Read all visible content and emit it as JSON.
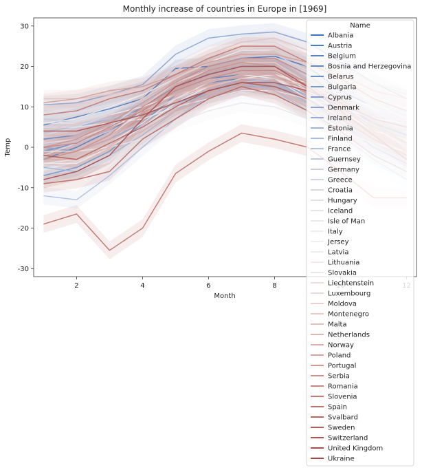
{
  "chart_data": {
    "type": "line",
    "title": "Monthly increase of countries in Europe in [1969]",
    "xlabel": "Month",
    "ylabel": "Temp",
    "xlim": [
      0.7,
      12.3
    ],
    "ylim": [
      -32,
      32
    ],
    "x_ticks": [
      2,
      4,
      6,
      8,
      10,
      12
    ],
    "y_ticks": [
      -30,
      -20,
      -10,
      0,
      10,
      20,
      30
    ],
    "legend_title": "Name",
    "legend_position": "upper right",
    "confidence_band": true,
    "x": [
      1,
      2,
      3,
      4,
      5,
      6,
      7,
      8,
      9,
      10,
      11,
      12
    ],
    "series": [
      {
        "name": "Albania",
        "color": "#3b73c0",
        "values": [
          5.5,
          7.5,
          9.5,
          12,
          19.5,
          20,
          22,
          22.5,
          20,
          14,
          10,
          7
        ]
      },
      {
        "name": "Austria",
        "color": "#4a7cc0",
        "values": [
          -3,
          0,
          4,
          9,
          14,
          17,
          18,
          17,
          14,
          8,
          3,
          -1
        ]
      },
      {
        "name": "Belgium",
        "color": "#5584c4",
        "values": [
          2,
          3,
          6,
          9,
          13,
          16,
          17,
          17,
          14,
          10,
          6,
          3
        ]
      },
      {
        "name": "Bosnia and Herzegovina",
        "color": "#5f8bc6",
        "values": [
          -1,
          1,
          5,
          10,
          15,
          18,
          20,
          20,
          16,
          11,
          6,
          1
        ]
      },
      {
        "name": "Belarus",
        "color": "#6a92c8",
        "values": [
          -7,
          -5,
          -1,
          6,
          13,
          16,
          18,
          17,
          12,
          6,
          0,
          -4
        ]
      },
      {
        "name": "Bulgaria",
        "color": "#7499cb",
        "values": [
          -1,
          1,
          5,
          11,
          16,
          20,
          22,
          22,
          18,
          12,
          6,
          1
        ]
      },
      {
        "name": "Cyprus",
        "color": "#7f9fce",
        "values": [
          10.5,
          11,
          13,
          15.5,
          23,
          27,
          28,
          28.5,
          26,
          21,
          16,
          12
        ]
      },
      {
        "name": "Denmark",
        "color": "#89a6d1",
        "values": [
          0,
          -1,
          2,
          6,
          11,
          14,
          16,
          16,
          13,
          9,
          5,
          2
        ]
      },
      {
        "name": "Ireland",
        "color": "#94add4",
        "values": [
          5,
          5,
          7,
          8,
          11,
          13,
          15,
          15,
          13,
          10,
          7,
          6
        ]
      },
      {
        "name": "Estonia",
        "color": "#9fb4d7",
        "values": [
          -5,
          -6,
          -2,
          3,
          9,
          14,
          17,
          16,
          11,
          6,
          1,
          -3
        ]
      },
      {
        "name": "Finland",
        "color": "#aabbda",
        "values": [
          -12,
          -13,
          -7,
          0,
          7,
          13,
          16,
          14,
          9,
          3,
          -3,
          -8
        ]
      },
      {
        "name": "France",
        "color": "#b4c2dd",
        "values": [
          4,
          5,
          8,
          11,
          15,
          18,
          20,
          20,
          17,
          13,
          8,
          5
        ]
      },
      {
        "name": "Guernsey",
        "color": "#bfc9e0",
        "values": [
          7,
          6,
          7,
          9,
          12,
          14,
          16,
          17,
          15,
          13,
          10,
          8
        ]
      },
      {
        "name": "Germany",
        "color": "#c9d0e3",
        "values": [
          0,
          1,
          4,
          8,
          13,
          16,
          18,
          17,
          14,
          9,
          5,
          1
        ]
      },
      {
        "name": "Greece",
        "color": "#d1d6e5",
        "values": [
          8,
          9,
          11,
          14,
          19,
          23,
          26,
          26,
          22,
          17,
          13,
          10
        ]
      },
      {
        "name": "Croatia",
        "color": "#d8dbe7",
        "values": [
          3,
          5,
          8,
          12,
          17,
          21,
          23,
          23,
          19,
          14,
          9,
          5
        ]
      },
      {
        "name": "Hungary",
        "color": "#dfe0ea",
        "values": [
          -2,
          1,
          5,
          11,
          16,
          19,
          21,
          20,
          16,
          11,
          5,
          0
        ]
      },
      {
        "name": "Iceland",
        "color": "#e5e6ed",
        "values": [
          -1,
          -1,
          0,
          2,
          6,
          9,
          11,
          10,
          7,
          4,
          1,
          -1
        ]
      },
      {
        "name": "Isle of Man",
        "color": "#eaeaef",
        "values": [
          5,
          5,
          6,
          7,
          10,
          12,
          14,
          14,
          12,
          10,
          7,
          6
        ]
      },
      {
        "name": "Italy",
        "color": "#eeeef1",
        "values": [
          6,
          7,
          10,
          13,
          17,
          21,
          24,
          24,
          20,
          16,
          11,
          7
        ]
      },
      {
        "name": "Jersey",
        "color": "#f0eff1",
        "values": [
          6,
          6,
          8,
          10,
          13,
          15,
          17,
          18,
          16,
          13,
          10,
          7
        ]
      },
      {
        "name": "Latvia",
        "color": "#f1eeee",
        "values": [
          -4,
          -4,
          0,
          5,
          11,
          15,
          17,
          17,
          12,
          7,
          2,
          -2
        ]
      },
      {
        "name": "Lithuania",
        "color": "#f1ebeb",
        "values": [
          -4,
          -3,
          1,
          6,
          12,
          16,
          18,
          17,
          13,
          7,
          2,
          -2
        ]
      },
      {
        "name": "Slovakia",
        "color": "#f0e6e5",
        "values": [
          -3,
          -1,
          3,
          9,
          14,
          17,
          19,
          19,
          14,
          9,
          4,
          -1
        ]
      },
      {
        "name": "Liechtenstein",
        "color": "#efe0de",
        "values": [
          0,
          1,
          5,
          9,
          13,
          16,
          18,
          18,
          15,
          10,
          5,
          1
        ]
      },
      {
        "name": "Luxembourg",
        "color": "#edd9d6",
        "values": [
          1,
          2,
          5,
          8,
          12,
          15,
          17,
          17,
          14,
          9,
          4,
          2
        ]
      },
      {
        "name": "Moldova",
        "color": "#ead1ce",
        "values": [
          -3,
          -1,
          3,
          10,
          16,
          19,
          21,
          21,
          16,
          10,
          5,
          0
        ]
      },
      {
        "name": "Montenegro",
        "color": "#e7c9c5",
        "values": [
          4,
          6,
          8,
          12,
          17,
          21,
          23,
          24,
          20,
          15,
          10,
          6
        ]
      },
      {
        "name": "Malta",
        "color": "#e3c0bc",
        "values": [
          12,
          12,
          13,
          15,
          19,
          23,
          26,
          27,
          24,
          20,
          16,
          13
        ]
      },
      {
        "name": "Netherlands",
        "color": "#dfb7b2",
        "values": [
          3,
          3,
          6,
          9,
          13,
          15,
          17,
          17,
          15,
          11,
          7,
          4
        ]
      },
      {
        "name": "Norway",
        "color": "#dbaea8",
        "values": [
          -3,
          -3,
          0,
          4,
          9,
          13,
          15,
          14,
          10,
          5,
          1,
          -2
        ]
      },
      {
        "name": "Poland",
        "color": "#d6a49e",
        "values": [
          -2,
          -1,
          2,
          8,
          13,
          16,
          18,
          18,
          13,
          8,
          3,
          -1
        ]
      },
      {
        "name": "Portugal",
        "color": "#d19b94",
        "values": [
          11,
          12,
          14,
          15,
          18,
          21,
          23,
          23,
          21,
          18,
          14,
          12
        ]
      },
      {
        "name": "Serbia",
        "color": "#cc918a",
        "values": [
          0,
          2,
          6,
          11,
          16,
          20,
          22,
          22,
          18,
          12,
          6,
          1
        ]
      },
      {
        "name": "Romania",
        "color": "#c78780",
        "values": [
          -3,
          -1,
          3,
          10,
          15,
          19,
          21,
          20,
          16,
          10,
          4,
          -1
        ]
      },
      {
        "name": "Slovenia",
        "color": "#c27d76",
        "values": [
          0,
          1,
          5,
          9,
          14,
          17,
          19,
          19,
          15,
          10,
          5,
          1
        ]
      },
      {
        "name": "Spain",
        "color": "#bd736c",
        "values": [
          8,
          9,
          12,
          14,
          18,
          22,
          25,
          25,
          21,
          17,
          12,
          9
        ]
      },
      {
        "name": "Svalbard",
        "color": "#b86a62",
        "values": [
          -19,
          -16.5,
          -25.5,
          -20,
          -6.5,
          -1,
          3.5,
          2,
          0,
          -6,
          -12.5,
          -12.5
        ]
      },
      {
        "name": "Sweden",
        "color": "#b3605a",
        "values": [
          -9,
          -8,
          -6,
          2,
          7,
          12,
          15,
          13,
          9,
          4,
          -2,
          -6
        ]
      },
      {
        "name": "Switzerland",
        "color": "#ae5752",
        "values": [
          -2,
          -3,
          1,
          5,
          10,
          14,
          16,
          15,
          12,
          7,
          2,
          -2
        ]
      },
      {
        "name": "United Kingdom",
        "color": "#a94f4b",
        "values": [
          4,
          4,
          6,
          8,
          11,
          14,
          16,
          16,
          14,
          11,
          7,
          5
        ]
      },
      {
        "name": "Ukraine",
        "color": "#a44745",
        "values": [
          -8,
          -6,
          -2,
          7,
          15,
          18,
          20,
          20,
          15,
          9,
          3,
          -3
        ]
      }
    ]
  }
}
